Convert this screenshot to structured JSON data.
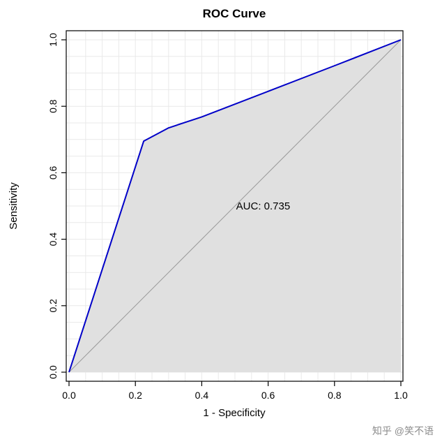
{
  "page": {
    "watermark": "知乎 @笑不语"
  },
  "chart_data": {
    "type": "line",
    "title": "ROC Curve",
    "xlabel": "1 - Specificity",
    "ylabel": "Sensitivity",
    "xlim": [
      0,
      1
    ],
    "ylim": [
      0,
      1
    ],
    "x_ticks": [
      "0.0",
      "0.2",
      "0.4",
      "0.6",
      "0.8",
      "1.0"
    ],
    "y_ticks": [
      "0.0",
      "0.2",
      "0.4",
      "0.6",
      "0.8",
      "1.0"
    ],
    "grid": true,
    "grid_step": 0.05,
    "legend": "none",
    "series": [
      {
        "name": "roc-curve",
        "color": "#0000c8",
        "width": 2,
        "points": [
          [
            0,
            0
          ],
          [
            0.225,
            0.695
          ],
          [
            0.3,
            0.735
          ],
          [
            0.4,
            0.768
          ],
          [
            0.6,
            0.845
          ],
          [
            0.8,
            0.922
          ],
          [
            1,
            1
          ]
        ]
      },
      {
        "name": "reference-diagonal",
        "color": "#9a9a9a",
        "width": 1,
        "points": [
          [
            0,
            0
          ],
          [
            1,
            1
          ]
        ]
      }
    ],
    "fill_under_curve": true,
    "annotation": {
      "text": "AUC: 0.735",
      "x": 0.585,
      "y": 0.49,
      "color": "#3333cc"
    }
  },
  "colors": {
    "curve": "#0000c8",
    "reference": "#9a9a9a",
    "fill": "#e0e0e0",
    "grid": "#e9e9e9",
    "box": "#000000",
    "auc_text": "#3333cc",
    "watermark": "#8c8c8c"
  }
}
